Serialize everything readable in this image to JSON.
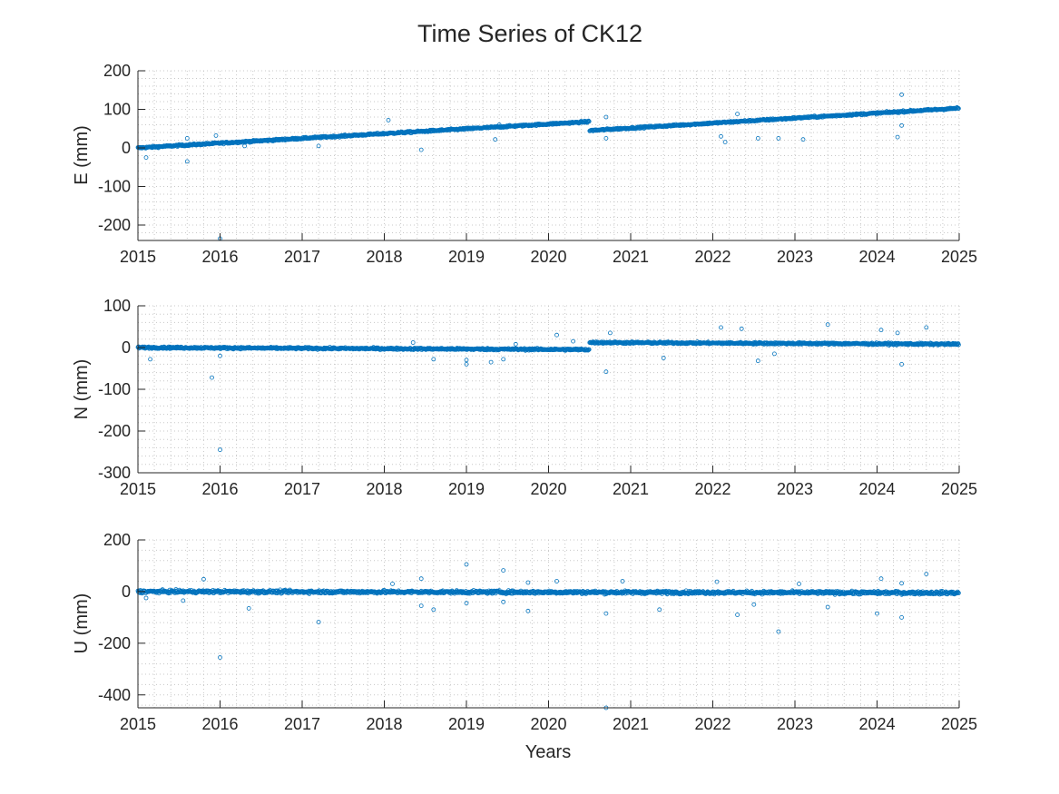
{
  "figure_title": "Time Series of CK12",
  "colors": {
    "marker": "#0072BD",
    "axis": "#262626",
    "grid": "#c8c8c8"
  },
  "chart_data": [
    {
      "type": "scatter",
      "name": "E",
      "ylabel": "E (mm)",
      "xlabel": "",
      "xlim": [
        2015,
        2025
      ],
      "ylim": [
        -240,
        200
      ],
      "xticks": [
        2015,
        2016,
        2017,
        2018,
        2019,
        2020,
        2021,
        2022,
        2023,
        2024,
        2025
      ],
      "yticks": [
        -200,
        -100,
        0,
        100,
        200
      ],
      "grid": "dotted-minor",
      "trend": [
        {
          "x0": 2015.0,
          "x1": 2020.5,
          "y0": 0,
          "y1": 68,
          "spread": 4
        },
        {
          "x0": 2020.5,
          "x1": 2025.0,
          "y0": 45,
          "y1": 103,
          "spread": 4
        }
      ],
      "outliers": [
        {
          "x": 2015.1,
          "y": -25
        },
        {
          "x": 2015.6,
          "y": 25
        },
        {
          "x": 2015.6,
          "y": -35
        },
        {
          "x": 2015.95,
          "y": 32
        },
        {
          "x": 2016.0,
          "y": -235
        },
        {
          "x": 2016.3,
          "y": 5
        },
        {
          "x": 2017.2,
          "y": 5
        },
        {
          "x": 2018.05,
          "y": 72
        },
        {
          "x": 2018.45,
          "y": -5
        },
        {
          "x": 2019.35,
          "y": 22
        },
        {
          "x": 2019.4,
          "y": 60
        },
        {
          "x": 2020.7,
          "y": 80
        },
        {
          "x": 2020.7,
          "y": 25
        },
        {
          "x": 2022.1,
          "y": 30
        },
        {
          "x": 2022.15,
          "y": 15
        },
        {
          "x": 2022.3,
          "y": 88
        },
        {
          "x": 2022.55,
          "y": 25
        },
        {
          "x": 2022.8,
          "y": 25
        },
        {
          "x": 2023.1,
          "y": 22
        },
        {
          "x": 2024.25,
          "y": 28
        },
        {
          "x": 2024.3,
          "y": 138
        },
        {
          "x": 2024.3,
          "y": 58
        }
      ]
    },
    {
      "type": "scatter",
      "name": "N",
      "ylabel": "N (mm)",
      "xlabel": "",
      "xlim": [
        2015,
        2025
      ],
      "ylim": [
        -300,
        100
      ],
      "xticks": [
        2015,
        2016,
        2017,
        2018,
        2019,
        2020,
        2021,
        2022,
        2023,
        2024,
        2025
      ],
      "yticks": [
        -300,
        -200,
        -100,
        0,
        100
      ],
      "grid": "dotted-minor",
      "trend": [
        {
          "x0": 2015.0,
          "x1": 2020.5,
          "y0": 0,
          "y1": -5,
          "spread": 4
        },
        {
          "x0": 2020.5,
          "x1": 2025.0,
          "y0": 12,
          "y1": 8,
          "spread": 4
        }
      ],
      "outliers": [
        {
          "x": 2015.15,
          "y": -28
        },
        {
          "x": 2015.9,
          "y": -72
        },
        {
          "x": 2016.0,
          "y": -20
        },
        {
          "x": 2016.0,
          "y": -245
        },
        {
          "x": 2018.35,
          "y": 12
        },
        {
          "x": 2018.6,
          "y": -28
        },
        {
          "x": 2019.0,
          "y": -30
        },
        {
          "x": 2019.0,
          "y": -40
        },
        {
          "x": 2019.3,
          "y": -35
        },
        {
          "x": 2019.45,
          "y": -28
        },
        {
          "x": 2019.6,
          "y": 8
        },
        {
          "x": 2020.1,
          "y": 30
        },
        {
          "x": 2020.3,
          "y": 15
        },
        {
          "x": 2020.7,
          "y": -58
        },
        {
          "x": 2020.75,
          "y": 35
        },
        {
          "x": 2021.4,
          "y": -25
        },
        {
          "x": 2022.1,
          "y": 48
        },
        {
          "x": 2022.35,
          "y": 45
        },
        {
          "x": 2022.55,
          "y": -32
        },
        {
          "x": 2022.75,
          "y": -15
        },
        {
          "x": 2023.4,
          "y": 55
        },
        {
          "x": 2024.05,
          "y": 42
        },
        {
          "x": 2024.25,
          "y": 35
        },
        {
          "x": 2024.3,
          "y": -40
        },
        {
          "x": 2024.6,
          "y": 48
        }
      ]
    },
    {
      "type": "scatter",
      "name": "U",
      "ylabel": "U (mm)",
      "xlabel": "Years",
      "xlim": [
        2015,
        2025
      ],
      "ylim": [
        -450,
        200
      ],
      "xticks": [
        2015,
        2016,
        2017,
        2018,
        2019,
        2020,
        2021,
        2022,
        2023,
        2024,
        2025
      ],
      "yticks": [
        -400,
        -200,
        0,
        200
      ],
      "grid": "dotted-minor",
      "trend": [
        {
          "x0": 2015.0,
          "x1": 2025.0,
          "y0": 0,
          "y1": -5,
          "spread": 10
        }
      ],
      "outliers": [
        {
          "x": 2015.1,
          "y": -25
        },
        {
          "x": 2015.55,
          "y": -35
        },
        {
          "x": 2015.8,
          "y": 48
        },
        {
          "x": 2016.0,
          "y": -255
        },
        {
          "x": 2016.35,
          "y": -65
        },
        {
          "x": 2017.2,
          "y": -118
        },
        {
          "x": 2018.1,
          "y": 30
        },
        {
          "x": 2018.45,
          "y": 50
        },
        {
          "x": 2018.45,
          "y": -55
        },
        {
          "x": 2018.6,
          "y": -70
        },
        {
          "x": 2019.0,
          "y": 105
        },
        {
          "x": 2019.0,
          "y": -45
        },
        {
          "x": 2019.45,
          "y": 82
        },
        {
          "x": 2019.45,
          "y": -40
        },
        {
          "x": 2019.75,
          "y": 35
        },
        {
          "x": 2019.75,
          "y": -75
        },
        {
          "x": 2020.1,
          "y": 40
        },
        {
          "x": 2020.7,
          "y": -85
        },
        {
          "x": 2020.7,
          "y": -450
        },
        {
          "x": 2020.9,
          "y": 40
        },
        {
          "x": 2021.35,
          "y": -70
        },
        {
          "x": 2022.05,
          "y": 38
        },
        {
          "x": 2022.3,
          "y": -90
        },
        {
          "x": 2022.5,
          "y": -50
        },
        {
          "x": 2022.8,
          "y": -155
        },
        {
          "x": 2023.05,
          "y": 30
        },
        {
          "x": 2023.4,
          "y": -60
        },
        {
          "x": 2024.0,
          "y": -85
        },
        {
          "x": 2024.05,
          "y": 50
        },
        {
          "x": 2024.3,
          "y": -100
        },
        {
          "x": 2024.3,
          "y": 32
        },
        {
          "x": 2024.6,
          "y": 68
        }
      ]
    }
  ]
}
